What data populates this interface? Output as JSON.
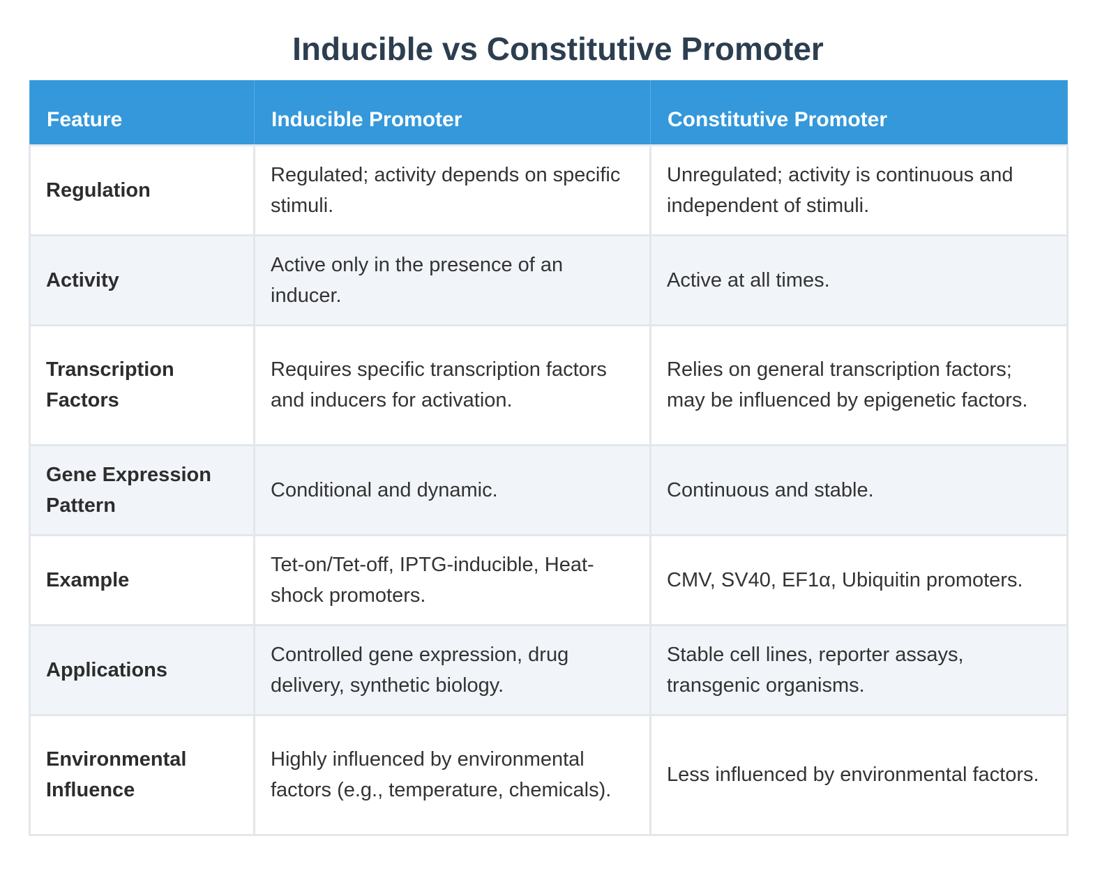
{
  "title": "Inducible vs Constitutive Promoter",
  "table": {
    "headers": [
      "Feature",
      "Inducible Promoter",
      "Constitutive Promoter"
    ],
    "rows": [
      {
        "feature": "Regulation",
        "inducible": "Regulated; activity depends on specific stimuli.",
        "constitutive": "Unregulated; activity is continuous and independent of stimuli."
      },
      {
        "feature": "Activity",
        "inducible": "Active only in the presence of an inducer.",
        "constitutive": "Active at all times."
      },
      {
        "feature": "Transcription Factors",
        "inducible": "Requires specific transcription factors and inducers for activation.",
        "constitutive": "Relies on general transcription factors; may be influenced by epigenetic factors."
      },
      {
        "feature": "Gene Expression Pattern",
        "inducible": "Conditional and dynamic.",
        "constitutive": "Continuous and stable."
      },
      {
        "feature": "Example",
        "inducible": "Tet-on/Tet-off, IPTG-inducible, Heat-shock promoters.",
        "constitutive": "CMV, SV40, EF1α, Ubiquitin promoters."
      },
      {
        "feature": "Applications",
        "inducible": "Controlled gene expression, drug delivery, synthetic biology.",
        "constitutive": "Stable cell lines, reporter assays, transgenic organisms."
      },
      {
        "feature": "Environmental Influence",
        "inducible": "Highly influenced by environmental factors (e.g., temperature, chemicals).",
        "constitutive": "Less influenced by environmental factors."
      }
    ]
  },
  "colors": {
    "header_bg": "#3498db",
    "title": "#2c3e50",
    "row_alt": "#f1f4f9",
    "border": "#e3e6ea"
  }
}
